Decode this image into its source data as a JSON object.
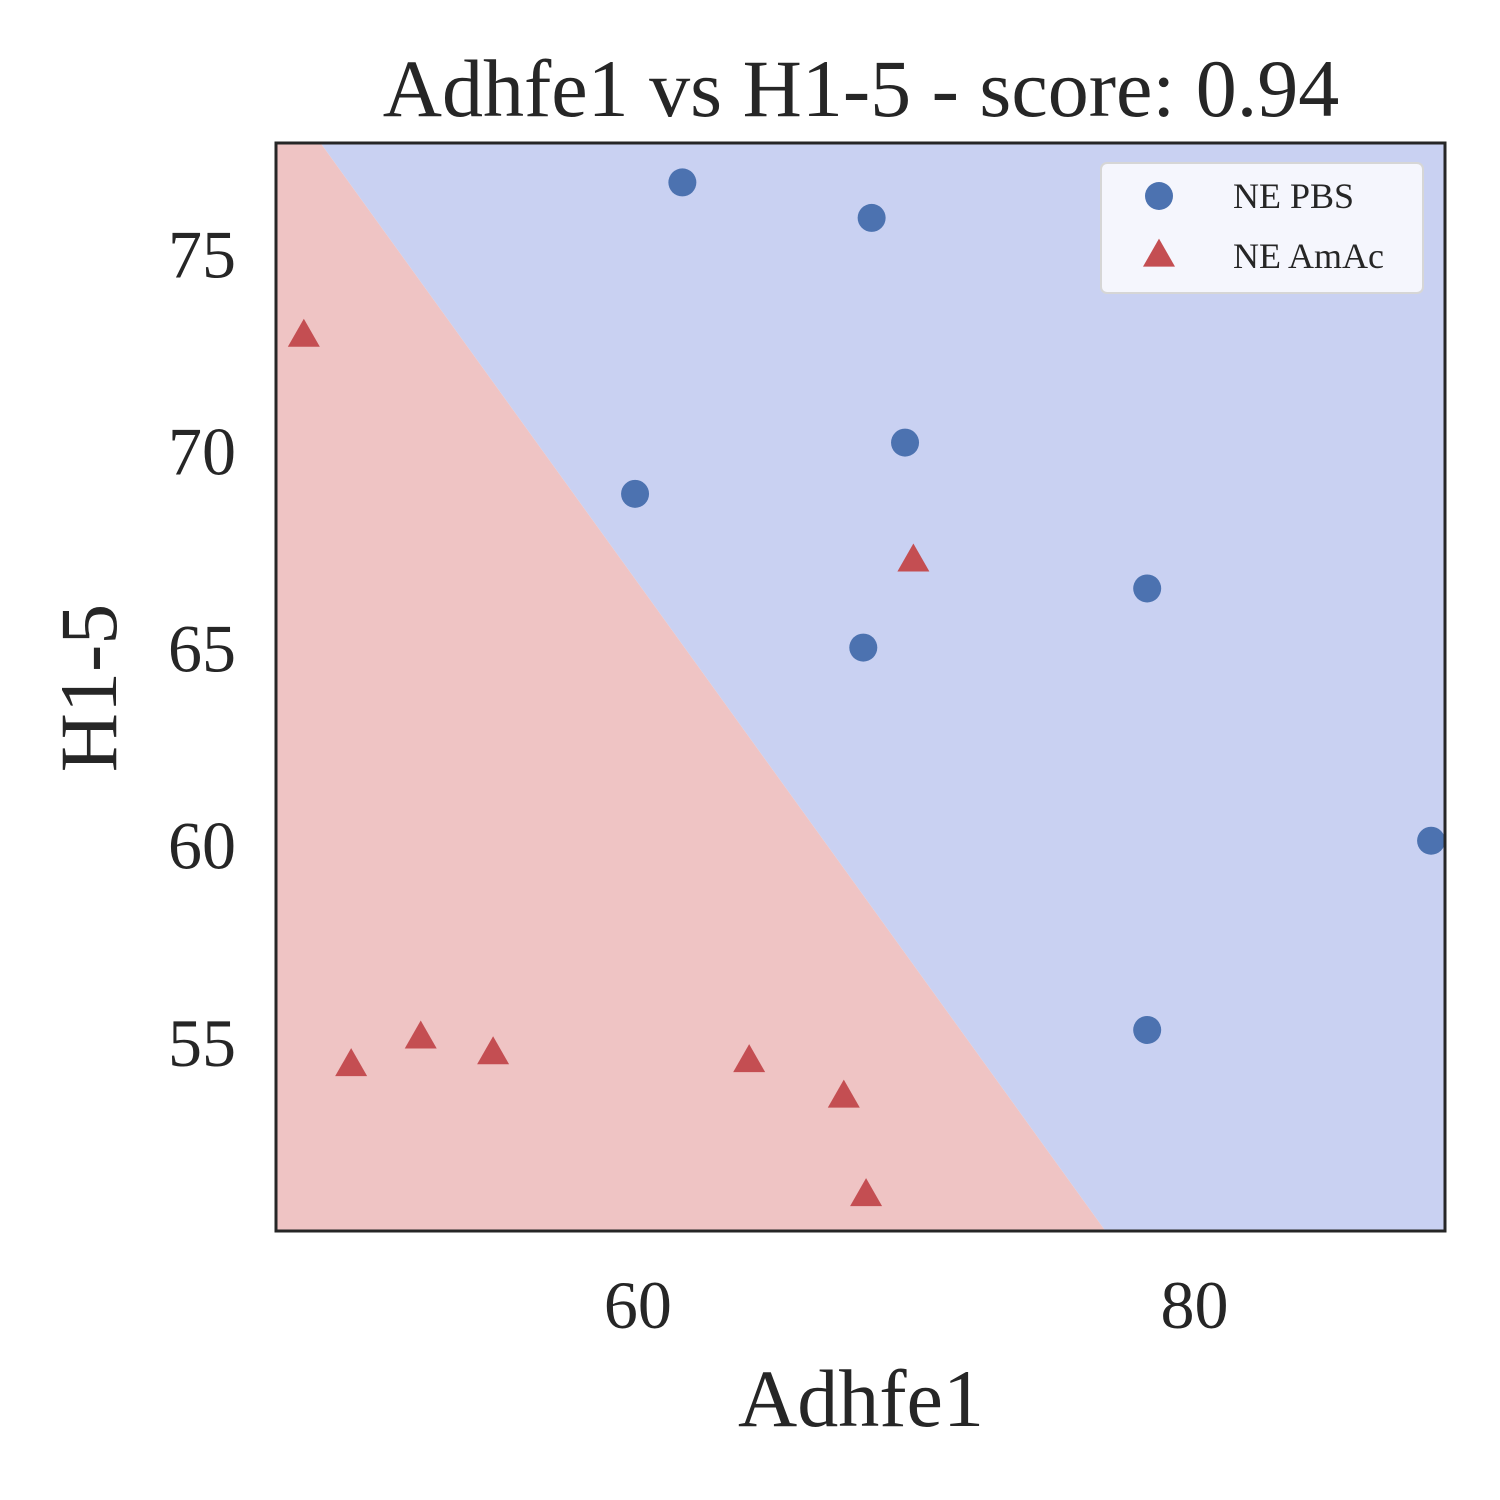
{
  "chart_data": {
    "type": "scatter",
    "title": "Adhfe1 vs H1-5 - score: 0.94",
    "xlabel": "Adhfe1",
    "ylabel": "H1-5",
    "xlim": [
      47,
      89
    ],
    "ylim": [
      50.2,
      77.8
    ],
    "xticks": [
      60,
      80
    ],
    "yticks": [
      55,
      60,
      65,
      70,
      75
    ],
    "grid": false,
    "legend_position": "top-right",
    "decision_boundary": {
      "line": [
        [
          48.6,
          77.8
        ],
        [
          76.8,
          50.2
        ]
      ],
      "lower_left_class": "NE AmAc",
      "upper_right_class": "NE PBS"
    },
    "series": [
      {
        "name": "NE PBS",
        "marker": "circle",
        "color": "#4c72b0",
        "region_color": "#c9d1f2",
        "points": [
          [
            61.6,
            76.8
          ],
          [
            68.4,
            75.9
          ],
          [
            69.6,
            70.2
          ],
          [
            59.9,
            68.9
          ],
          [
            78.3,
            66.5
          ],
          [
            68.1,
            65.0
          ],
          [
            88.5,
            60.1
          ],
          [
            78.3,
            55.3
          ]
        ]
      },
      {
        "name": "NE AmAc",
        "marker": "triangle",
        "color": "#c44e52",
        "region_color": "#efc4c4",
        "points": [
          [
            48.0,
            72.9
          ],
          [
            69.9,
            67.2
          ],
          [
            49.7,
            54.4
          ],
          [
            52.2,
            55.1
          ],
          [
            54.8,
            54.7
          ],
          [
            64.0,
            54.5
          ],
          [
            67.4,
            53.6
          ],
          [
            68.2,
            51.1
          ]
        ]
      }
    ]
  }
}
